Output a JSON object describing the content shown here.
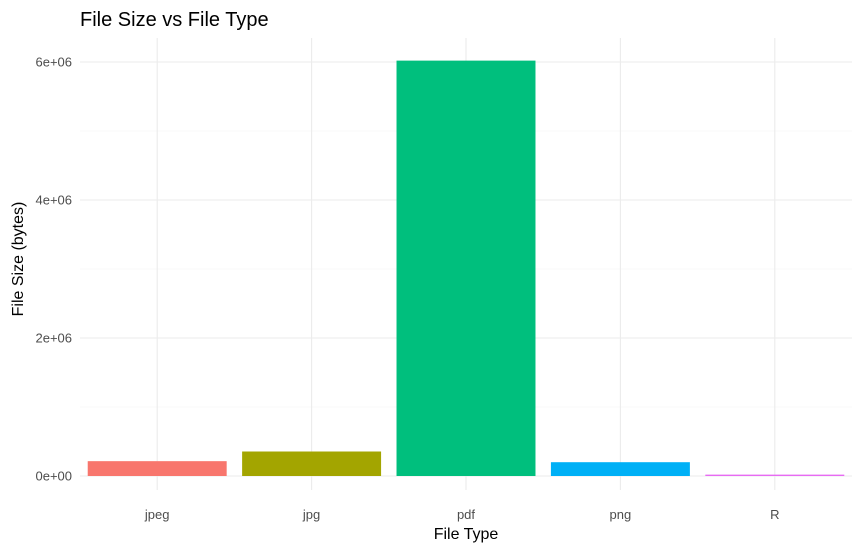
{
  "chart_data": {
    "type": "bar",
    "title": "File Size vs File Type",
    "xlabel": "File Type",
    "ylabel": "File Size (bytes)",
    "categories": [
      "jpeg",
      "jpg",
      "pdf",
      "png",
      "R"
    ],
    "values": [
      215000,
      355000,
      6020000,
      200000,
      20000
    ],
    "colors": [
      "#F8766D",
      "#A3A500",
      "#00BF7D",
      "#00B0F6",
      "#E76BF3"
    ],
    "ylim": [
      0,
      6300000
    ],
    "yticks": [
      0,
      2000000,
      4000000,
      6000000
    ],
    "ytick_labels": [
      "0e+00",
      "2e+06",
      "4e+06",
      "6e+06"
    ],
    "grid": true,
    "legend": "none"
  }
}
